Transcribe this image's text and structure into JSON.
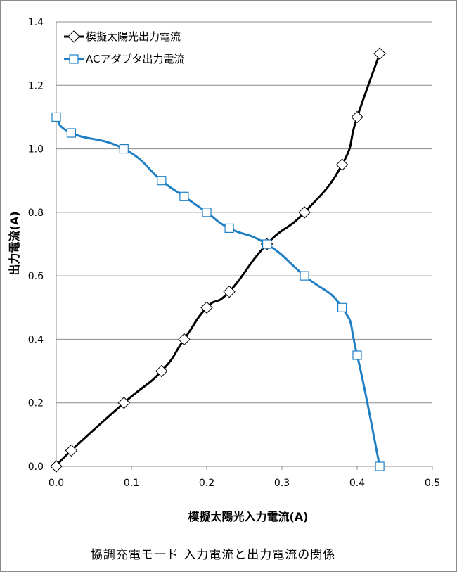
{
  "chart_data": {
    "type": "line",
    "title": "",
    "xlabel": "模擬太陽光入力電流(A)",
    "ylabel": "出力電流(A)",
    "caption": "協調充電モード 入力電流と出力電流の関係",
    "xlim": [
      0,
      0.5
    ],
    "ylim": [
      0,
      1.4
    ],
    "x_ticks": [
      "0.0",
      "0.1",
      "0.2",
      "0.3",
      "0.4",
      "0.5"
    ],
    "y_ticks": [
      "0.0",
      "0.2",
      "0.4",
      "0.6",
      "0.8",
      "1.0",
      "1.2",
      "1.4"
    ],
    "grid": "horizontal",
    "legend_position": "top-left",
    "series": [
      {
        "name": "模擬太陽光出力電流",
        "color": "#000000",
        "marker": "diamond",
        "x": [
          0.0,
          0.02,
          0.09,
          0.14,
          0.17,
          0.2,
          0.23,
          0.28,
          0.33,
          0.38,
          0.4,
          0.43
        ],
        "y": [
          0.0,
          0.05,
          0.2,
          0.3,
          0.4,
          0.5,
          0.55,
          0.7,
          0.8,
          0.95,
          1.1,
          1.3
        ]
      },
      {
        "name": "ACアダプタ出力電流",
        "color": "#1f7fc4",
        "marker": "square",
        "x": [
          0.0,
          0.02,
          0.09,
          0.14,
          0.17,
          0.2,
          0.23,
          0.28,
          0.33,
          0.38,
          0.4,
          0.43
        ],
        "y": [
          1.1,
          1.05,
          1.0,
          0.9,
          0.85,
          0.8,
          0.75,
          0.7,
          0.6,
          0.5,
          0.35,
          0.0
        ]
      }
    ]
  }
}
